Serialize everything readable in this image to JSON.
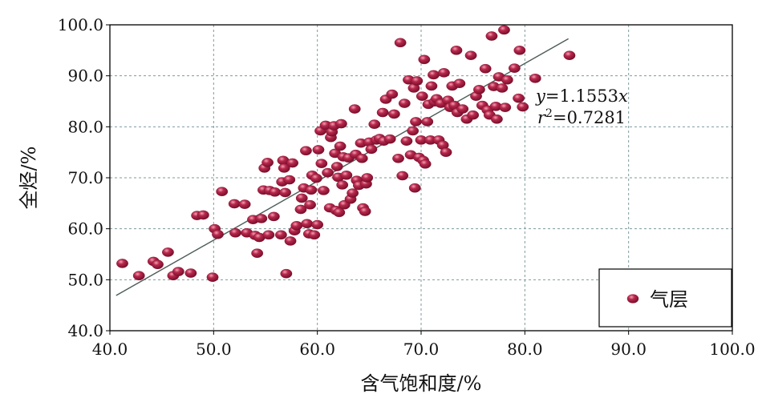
{
  "chart_data": {
    "type": "scatter",
    "xlabel": "含气饱和度/%",
    "ylabel": "全烃/%",
    "xlim": [
      40,
      100
    ],
    "ylim": [
      40,
      100
    ],
    "xticks": [
      "40.0",
      "50.0",
      "60.0",
      "70.0",
      "80.0",
      "90.0",
      "100.0"
    ],
    "yticks": [
      "40.0",
      "50.0",
      "60.0",
      "70.0",
      "80.0",
      "90.0",
      "100.0"
    ],
    "grid": true,
    "legend_position": "bottom-right",
    "marker_color": "#a31a3c",
    "trendline_color": "#4d5d59",
    "series": [
      {
        "name": "气层",
        "points": [
          [
            41.2,
            53.2
          ],
          [
            42.8,
            50.8
          ],
          [
            44.2,
            53.6
          ],
          [
            44.6,
            53.0
          ],
          [
            45.6,
            55.4
          ],
          [
            46.1,
            50.8
          ],
          [
            46.6,
            51.6
          ],
          [
            47.8,
            51.3
          ],
          [
            48.4,
            62.6
          ],
          [
            49.0,
            62.7
          ],
          [
            49.9,
            50.5
          ],
          [
            50.1,
            60.0
          ],
          [
            50.4,
            58.9
          ],
          [
            50.8,
            67.3
          ],
          [
            52.0,
            64.9
          ],
          [
            52.1,
            59.2
          ],
          [
            53.0,
            64.8
          ],
          [
            53.2,
            59.2
          ],
          [
            53.8,
            61.8
          ],
          [
            54.0,
            58.7
          ],
          [
            54.2,
            55.2
          ],
          [
            54.4,
            58.3
          ],
          [
            54.6,
            62.0
          ],
          [
            54.8,
            67.6
          ],
          [
            54.9,
            71.9
          ],
          [
            55.2,
            73.0
          ],
          [
            55.3,
            58.8
          ],
          [
            55.4,
            67.5
          ],
          [
            55.8,
            62.4
          ],
          [
            55.9,
            67.2
          ],
          [
            56.5,
            58.8
          ],
          [
            56.6,
            69.2
          ],
          [
            56.7,
            73.4
          ],
          [
            56.8,
            71.9
          ],
          [
            56.9,
            67.1
          ],
          [
            57.0,
            51.2
          ],
          [
            57.3,
            69.6
          ],
          [
            57.4,
            57.6
          ],
          [
            57.6,
            72.9
          ],
          [
            57.8,
            59.6
          ],
          [
            58.0,
            60.6
          ],
          [
            58.4,
            63.8
          ],
          [
            58.5,
            66.0
          ],
          [
            58.7,
            68.0
          ],
          [
            58.9,
            75.3
          ],
          [
            59.0,
            61.0
          ],
          [
            59.2,
            59.0
          ],
          [
            59.3,
            64.7
          ],
          [
            59.4,
            67.6
          ],
          [
            59.5,
            70.5
          ],
          [
            59.7,
            58.8
          ],
          [
            59.9,
            69.9
          ],
          [
            60.0,
            60.8
          ],
          [
            60.1,
            75.5
          ],
          [
            60.3,
            79.2
          ],
          [
            60.4,
            72.8
          ],
          [
            60.6,
            67.5
          ],
          [
            60.8,
            80.3
          ],
          [
            61.0,
            71.0
          ],
          [
            61.2,
            64.1
          ],
          [
            61.3,
            77.9
          ],
          [
            61.4,
            79.0
          ],
          [
            61.6,
            80.2
          ],
          [
            61.7,
            74.8
          ],
          [
            61.8,
            63.6
          ],
          [
            61.9,
            72.2
          ],
          [
            62.0,
            70.1
          ],
          [
            62.1,
            63.2
          ],
          [
            62.2,
            76.2
          ],
          [
            62.3,
            80.6
          ],
          [
            62.4,
            68.6
          ],
          [
            62.5,
            74.1
          ],
          [
            62.6,
            64.7
          ],
          [
            62.8,
            70.5
          ],
          [
            63.0,
            73.9
          ],
          [
            63.2,
            65.8
          ],
          [
            63.4,
            67.0
          ],
          [
            63.6,
            83.5
          ],
          [
            63.7,
            74.6
          ],
          [
            63.8,
            69.5
          ],
          [
            64.0,
            68.5
          ],
          [
            64.2,
            76.8
          ],
          [
            64.3,
            73.8
          ],
          [
            64.4,
            64.1
          ],
          [
            64.6,
            63.4
          ],
          [
            64.7,
            68.8
          ],
          [
            64.8,
            70.0
          ],
          [
            65.0,
            77.0
          ],
          [
            65.2,
            75.6
          ],
          [
            65.5,
            80.5
          ],
          [
            65.7,
            77.4
          ],
          [
            66.0,
            77.7
          ],
          [
            66.3,
            82.8
          ],
          [
            66.4,
            77.2
          ],
          [
            66.6,
            85.4
          ],
          [
            67.0,
            77.6
          ],
          [
            67.2,
            86.4
          ],
          [
            67.4,
            82.5
          ],
          [
            67.8,
            73.8
          ],
          [
            68.0,
            96.5
          ],
          [
            68.2,
            70.4
          ],
          [
            68.4,
            84.6
          ],
          [
            68.6,
            77.2
          ],
          [
            68.8,
            89.2
          ],
          [
            69.0,
            74.5
          ],
          [
            69.2,
            79.2
          ],
          [
            69.3,
            87.6
          ],
          [
            69.4,
            68.0
          ],
          [
            69.5,
            81.0
          ],
          [
            69.6,
            89.0
          ],
          [
            69.8,
            74.0
          ],
          [
            70.0,
            77.4
          ],
          [
            70.1,
            86.0
          ],
          [
            70.2,
            73.4
          ],
          [
            70.3,
            93.2
          ],
          [
            70.4,
            72.7
          ],
          [
            70.6,
            81.0
          ],
          [
            70.7,
            84.4
          ],
          [
            70.9,
            77.4
          ],
          [
            71.0,
            88.0
          ],
          [
            71.2,
            90.2
          ],
          [
            71.3,
            84.9
          ],
          [
            71.5,
            85.5
          ],
          [
            71.7,
            77.4
          ],
          [
            71.9,
            84.6
          ],
          [
            72.1,
            76.4
          ],
          [
            72.2,
            90.6
          ],
          [
            72.4,
            75.0
          ],
          [
            72.6,
            85.2
          ],
          [
            72.8,
            83.8
          ],
          [
            73.0,
            88.0
          ],
          [
            73.2,
            84.2
          ],
          [
            73.4,
            95.0
          ],
          [
            73.5,
            82.8
          ],
          [
            73.7,
            88.5
          ],
          [
            74.0,
            83.5
          ],
          [
            74.4,
            81.5
          ],
          [
            74.8,
            94.0
          ],
          [
            75.0,
            82.3
          ],
          [
            75.3,
            86.0
          ],
          [
            75.6,
            87.3
          ],
          [
            75.9,
            84.2
          ],
          [
            76.2,
            91.4
          ],
          [
            76.4,
            83.3
          ],
          [
            76.6,
            82.3
          ],
          [
            76.8,
            97.8
          ],
          [
            77.0,
            87.9
          ],
          [
            77.2,
            84.0
          ],
          [
            77.3,
            81.5
          ],
          [
            77.5,
            89.8
          ],
          [
            77.8,
            87.6
          ],
          [
            78.0,
            99.0
          ],
          [
            78.1,
            83.8
          ],
          [
            78.3,
            89.2
          ],
          [
            79.0,
            91.5
          ],
          [
            79.4,
            85.6
          ],
          [
            79.5,
            95.0
          ],
          [
            79.8,
            83.9
          ],
          [
            81.0,
            89.5
          ],
          [
            84.3,
            94.0
          ]
        ]
      }
    ],
    "trendline": {
      "equation": "y=1.1553x",
      "r2_text": "r²=0.7281",
      "slope": 1.1553,
      "x_range": [
        40.6,
        84.2
      ]
    },
    "annotation": {
      "eq_italic": "y",
      "eq_rest": "=1.1553",
      "eq_var": "x",
      "r_italic": "r",
      "r_sup": "2",
      "r_rest": "=0.7281"
    }
  }
}
